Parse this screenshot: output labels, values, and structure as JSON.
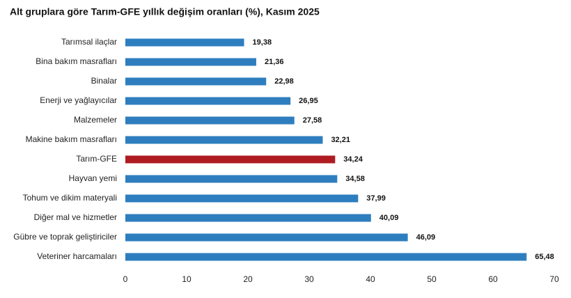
{
  "chart_data": {
    "type": "barh",
    "title": "Alt gruplara göre Tarım-GFE yıllık değişim oranları (%), Kasım 2025",
    "categories": [
      "Tarımsal ilaçlar",
      "Bina bakım masrafları",
      "Binalar",
      "Enerji  ve yağlayıcılar",
      "Malzemeler",
      "Makine bakım masrafları",
      "Tarım-GFE",
      "Hayvan yemi",
      "Tohum ve dikim materyali",
      "Diğer mal ve hizmetler",
      "Gübre ve toprak geliştiriciler",
      "Veteriner harcamaları"
    ],
    "values": [
      19.38,
      21.36,
      22.98,
      26.95,
      27.58,
      32.21,
      34.24,
      34.58,
      37.99,
      40.09,
      46.09,
      65.48
    ],
    "value_labels": [
      "19,38",
      "21,36",
      "22,98",
      "26,95",
      "27,58",
      "32,21",
      "34,24",
      "34,58",
      "37,99",
      "40,09",
      "46,09",
      "65,48"
    ],
    "colors": [
      "#2e7ebf",
      "#2e7ebf",
      "#2e7ebf",
      "#2e7ebf",
      "#2e7ebf",
      "#2e7ebf",
      "#ae1c22",
      "#2e7ebf",
      "#2e7ebf",
      "#2e7ebf",
      "#2e7ebf",
      "#2e7ebf"
    ],
    "xlim": [
      0,
      70
    ],
    "xticks": [
      0,
      10,
      20,
      30,
      40,
      50,
      60,
      70
    ],
    "grid": false
  }
}
